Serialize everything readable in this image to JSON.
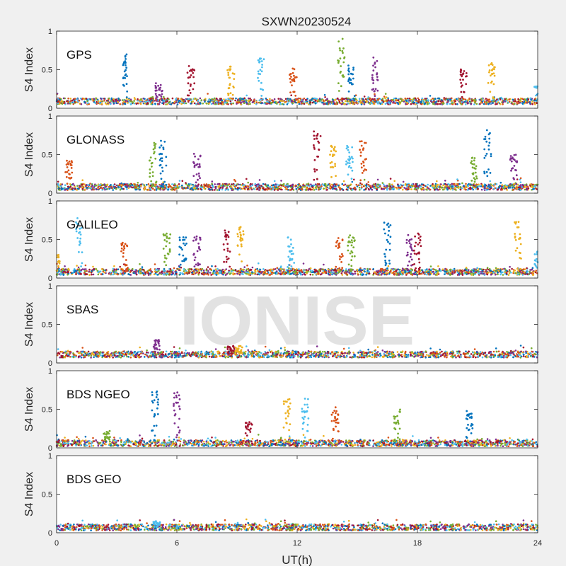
{
  "chart_data": {
    "type": "scatter",
    "title": "SXWN20230524",
    "xlabel": "UT(h)",
    "ylabel": "S4 Index",
    "xlim": [
      0,
      24
    ],
    "xticks": [
      0,
      6,
      12,
      18,
      24
    ],
    "xtick_labels": [
      "0",
      "6",
      "12",
      "18",
      "24"
    ],
    "watermark": "IONISE",
    "colors": [
      "#0072bd",
      "#d95319",
      "#edb120",
      "#7e2f8e",
      "#77ac30",
      "#4dbeee",
      "#a2142f"
    ],
    "panels": [
      {
        "name": "GPS",
        "ylim": [
          0,
          1
        ],
        "yticks": [
          "0",
          "0.5",
          "1"
        ],
        "baseline": 0.09,
        "spikes": [
          [
            3.4,
            0.7
          ],
          [
            5.1,
            0.36
          ],
          [
            6.7,
            0.55
          ],
          [
            8.7,
            0.54
          ],
          [
            10.2,
            0.65
          ],
          [
            11.8,
            0.52
          ],
          [
            14.2,
            0.92
          ],
          [
            14.7,
            0.56
          ],
          [
            15.9,
            0.66
          ],
          [
            20.3,
            0.53
          ],
          [
            21.7,
            0.6
          ],
          [
            24,
            0.3
          ]
        ]
      },
      {
        "name": "GLONASS",
        "ylim": [
          0,
          1
        ],
        "yticks": [
          "0",
          "0.5",
          "1"
        ],
        "baseline": 0.08,
        "spikes": [
          [
            0.6,
            0.45
          ],
          [
            4.8,
            0.66
          ],
          [
            5.3,
            0.7
          ],
          [
            7.0,
            0.52
          ],
          [
            13.0,
            0.8
          ],
          [
            13.8,
            0.62
          ],
          [
            14.6,
            0.62
          ],
          [
            15.3,
            0.68
          ],
          [
            20.8,
            0.46
          ],
          [
            21.5,
            0.83
          ],
          [
            22.8,
            0.5
          ]
        ]
      },
      {
        "name": "GALILEO",
        "ylim": [
          0,
          1
        ],
        "yticks": [
          "0",
          "0.5",
          "1"
        ],
        "baseline": 0.08,
        "spikes": [
          [
            0.0,
            0.32
          ],
          [
            1.1,
            0.78
          ],
          [
            3.4,
            0.46
          ],
          [
            5.5,
            0.58
          ],
          [
            6.3,
            0.56
          ],
          [
            7.0,
            0.55
          ],
          [
            8.5,
            0.62
          ],
          [
            9.2,
            0.67
          ],
          [
            11.7,
            0.55
          ],
          [
            14.1,
            0.52
          ],
          [
            14.7,
            0.58
          ],
          [
            16.5,
            0.72
          ],
          [
            17.6,
            0.56
          ],
          [
            18.0,
            0.6
          ],
          [
            23.0,
            0.75
          ],
          [
            24.0,
            0.35
          ]
        ]
      },
      {
        "name": "SBAS",
        "ylim": [
          0,
          1
        ],
        "yticks": [
          "0",
          "0.5",
          "1"
        ],
        "baseline": 0.11,
        "spikes": [
          [
            5.0,
            0.3
          ],
          [
            8.7,
            0.22
          ],
          [
            9.1,
            0.22
          ]
        ]
      },
      {
        "name": "BDS NGEO",
        "ylim": [
          0,
          1
        ],
        "yticks": [
          "0",
          "0.5",
          "1"
        ],
        "baseline": 0.06,
        "spikes": [
          [
            2.5,
            0.22
          ],
          [
            4.9,
            0.74
          ],
          [
            6.0,
            0.72
          ],
          [
            9.6,
            0.34
          ],
          [
            11.5,
            0.66
          ],
          [
            12.4,
            0.65
          ],
          [
            13.9,
            0.53
          ],
          [
            17.0,
            0.5
          ],
          [
            20.6,
            0.48
          ]
        ]
      },
      {
        "name": "BDS GEO",
        "ylim": [
          0,
          1
        ],
        "yticks": [
          "0",
          "0.5",
          "1"
        ],
        "baseline": 0.07,
        "spikes": [
          [
            5.0,
            0.15
          ]
        ]
      }
    ]
  }
}
